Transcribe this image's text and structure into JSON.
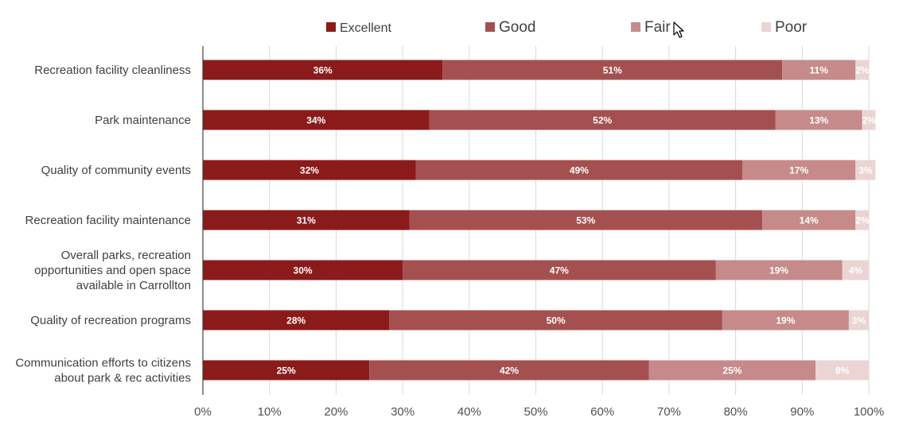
{
  "chart_data": {
    "type": "bar",
    "orientation": "horizontal",
    "stacked": true,
    "title": "",
    "xlabel": "",
    "ylabel": "",
    "xlim": [
      0,
      100
    ],
    "grid": true,
    "legend_position": "top",
    "categories": [
      [
        "Recreation facility cleanliness"
      ],
      [
        "Park maintenance"
      ],
      [
        "Quality of community events"
      ],
      [
        "Recreation facility maintenance"
      ],
      [
        "Overall parks, recreation",
        "opportunities and open space",
        "available in Carrollton"
      ],
      [
        "Quality of recreation programs"
      ],
      [
        "Communication efforts to citizens",
        "about park & rec activities"
      ]
    ],
    "series": [
      {
        "name": "Excellent",
        "color": "#8b1a1a",
        "values": [
          36,
          34,
          32,
          31,
          30,
          28,
          25
        ],
        "labels": [
          "36%",
          "34%",
          "32%",
          "31%",
          "30%",
          "28%",
          "25%"
        ]
      },
      {
        "name": "Good",
        "color": "#a55050",
        "values": [
          51,
          52,
          49,
          53,
          47,
          50,
          42
        ],
        "labels": [
          "51%",
          "52%",
          "49%",
          "53%",
          "47%",
          "50%",
          "42%"
        ]
      },
      {
        "name": "Fair",
        "color": "#c68a8a",
        "values": [
          11,
          13,
          17,
          14,
          19,
          19,
          25
        ],
        "labels": [
          "11%",
          "13%",
          "17%",
          "14%",
          "19%",
          "19%",
          "25%"
        ]
      },
      {
        "name": "Poor",
        "color": "#ebd4d4",
        "values": [
          2,
          2,
          3,
          2,
          4,
          3,
          8
        ],
        "labels": [
          "2%",
          "2%",
          "3%",
          "2%",
          "4%",
          "3%",
          "8%"
        ]
      }
    ],
    "xticks": [
      0,
      10,
      20,
      30,
      40,
      50,
      60,
      70,
      80,
      90,
      100
    ],
    "xtick_labels": [
      "0%",
      "10%",
      "20%",
      "30%",
      "40%",
      "50%",
      "60%",
      "70%",
      "80%",
      "90%",
      "100%"
    ]
  },
  "colors": {
    "grid": "#d9d9d9",
    "axis": "#404040",
    "text": "#404040"
  }
}
